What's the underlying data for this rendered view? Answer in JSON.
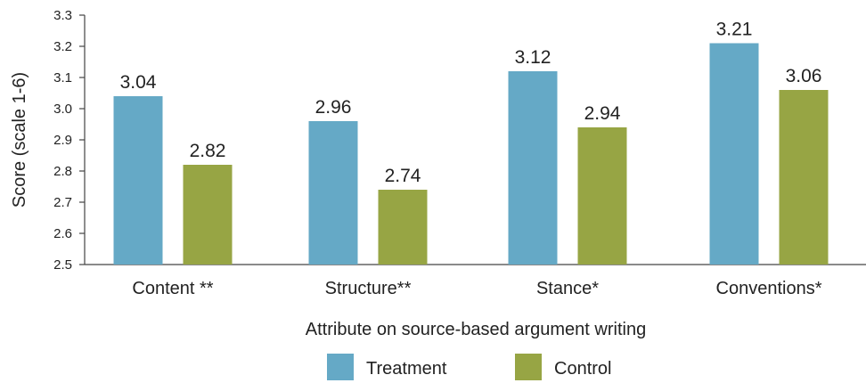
{
  "chart_data": {
    "type": "bar",
    "title": "",
    "xlabel": "Attribute on source-based argument writing",
    "ylabel": "Score (scale 1-6)",
    "ylim": [
      2.5,
      3.3
    ],
    "yticks": [
      "2.5",
      "2.6",
      "2.7",
      "2.8",
      "2.9",
      "3.0",
      "3.1",
      "3.2",
      "3.3"
    ],
    "categories": [
      "Content **",
      "Structure**",
      "Stance*",
      "Conventions*"
    ],
    "series": [
      {
        "name": "Treatment",
        "color": "#65a9c6",
        "values": [
          3.04,
          2.96,
          3.12,
          3.21
        ],
        "labels": [
          "3.04",
          "2.96",
          "3.12",
          "3.21"
        ]
      },
      {
        "name": "Control",
        "color": "#97a544",
        "values": [
          2.82,
          2.74,
          2.94,
          3.06
        ],
        "labels": [
          "2.82",
          "2.74",
          "2.94",
          "3.06"
        ]
      }
    ],
    "grid": false,
    "legend_position": "bottom-center"
  }
}
